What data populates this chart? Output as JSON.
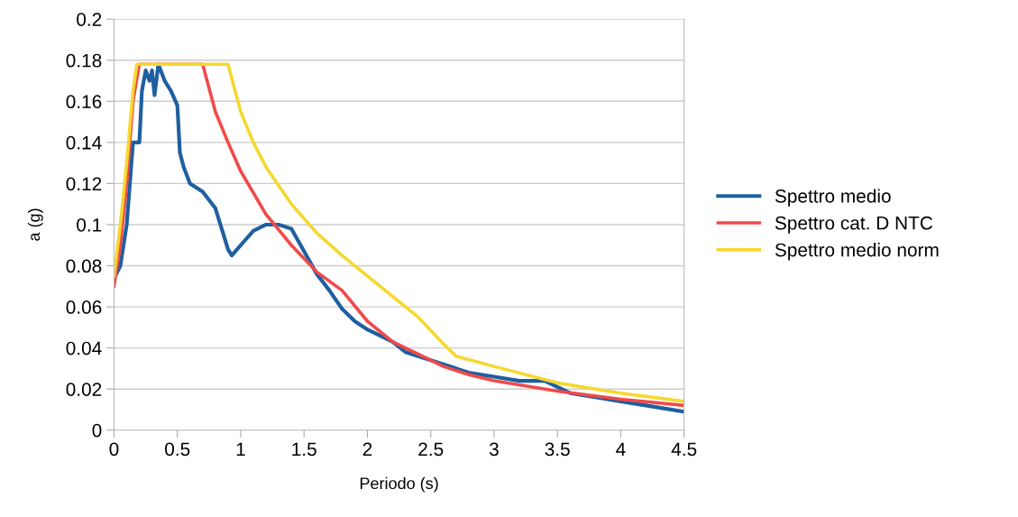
{
  "chart_data": {
    "type": "line",
    "xlabel": "Periodo (s)",
    "ylabel": "a (g)",
    "xlim": [
      0,
      4.5
    ],
    "ylim": [
      0,
      0.2
    ],
    "xticks": [
      0,
      0.5,
      1,
      1.5,
      2,
      2.5,
      3,
      3.5,
      4,
      4.5
    ],
    "yticks": [
      0,
      0.02,
      0.04,
      0.06,
      0.08,
      0.1,
      0.12,
      0.14,
      0.16,
      0.18,
      0.2
    ],
    "grid": "y",
    "legend": "right",
    "line_style": "solid",
    "marker": "none",
    "series": [
      {
        "name": "Spettro medio",
        "color": "#1f5fa0",
        "x": [
          0.01,
          0.05,
          0.1,
          0.15,
          0.2,
          0.22,
          0.25,
          0.28,
          0.3,
          0.32,
          0.35,
          0.4,
          0.45,
          0.5,
          0.52,
          0.55,
          0.6,
          0.7,
          0.8,
          0.85,
          0.9,
          0.93,
          1.0,
          1.1,
          1.2,
          1.3,
          1.4,
          1.5,
          1.6,
          1.7,
          1.8,
          1.9,
          2.0,
          2.2,
          2.3,
          2.4,
          2.6,
          2.8,
          3.0,
          3.2,
          3.4,
          3.5,
          3.6,
          3.8,
          4.0,
          4.2,
          4.5
        ],
        "values": [
          0.075,
          0.08,
          0.1,
          0.14,
          0.14,
          0.165,
          0.175,
          0.17,
          0.175,
          0.163,
          0.178,
          0.17,
          0.165,
          0.158,
          0.135,
          0.128,
          0.12,
          0.116,
          0.108,
          0.098,
          0.088,
          0.085,
          0.09,
          0.097,
          0.1,
          0.1,
          0.098,
          0.087,
          0.076,
          0.068,
          0.059,
          0.053,
          0.049,
          0.043,
          0.038,
          0.036,
          0.032,
          0.028,
          0.026,
          0.024,
          0.024,
          0.021,
          0.018,
          0.016,
          0.014,
          0.012,
          0.009
        ]
      },
      {
        "name": "Spettro cat. D NTC",
        "color": "#f04a4a",
        "x": [
          0,
          0.05,
          0.1,
          0.15,
          0.2,
          0.7,
          0.8,
          0.9,
          1.0,
          1.2,
          1.4,
          1.6,
          1.8,
          2.0,
          2.2,
          2.4,
          2.6,
          2.8,
          3.0,
          3.5,
          4.0,
          4.5
        ],
        "values": [
          0.07,
          0.09,
          0.12,
          0.16,
          0.178,
          0.178,
          0.155,
          0.14,
          0.126,
          0.105,
          0.09,
          0.077,
          0.068,
          0.053,
          0.043,
          0.037,
          0.031,
          0.027,
          0.024,
          0.019,
          0.015,
          0.012
        ]
      },
      {
        "name": "Spettro medio norm",
        "color": "#f5d830",
        "x": [
          0,
          0.05,
          0.1,
          0.15,
          0.18,
          0.9,
          1.0,
          1.1,
          1.2,
          1.4,
          1.6,
          1.8,
          2.0,
          2.2,
          2.4,
          2.6,
          2.7,
          3.0,
          3.5,
          4.0,
          4.5
        ],
        "values": [
          0.075,
          0.1,
          0.13,
          0.165,
          0.178,
          0.178,
          0.155,
          0.14,
          0.128,
          0.11,
          0.096,
          0.085,
          0.075,
          0.065,
          0.055,
          0.042,
          0.036,
          0.031,
          0.023,
          0.018,
          0.014
        ]
      }
    ]
  }
}
